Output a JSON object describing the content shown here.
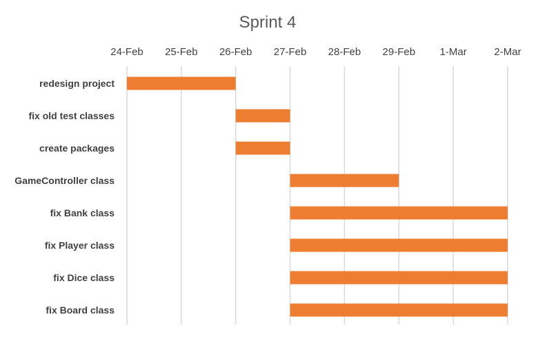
{
  "chart_data": {
    "type": "bar",
    "orientation": "horizontal",
    "chart_style": "gantt",
    "title": "Sprint 4",
    "x_axis": {
      "position": "top",
      "ticks": [
        "24-Feb",
        "25-Feb",
        "26-Feb",
        "27-Feb",
        "28-Feb",
        "29-Feb",
        "1-Mar",
        "2-Mar"
      ],
      "range": [
        "24-Feb",
        "2-Mar"
      ],
      "gridlines": true
    },
    "tasks": [
      {
        "name": "redesign project",
        "start": "24-Feb",
        "end": "26-Feb"
      },
      {
        "name": "fix old test classes",
        "start": "26-Feb",
        "end": "27-Feb"
      },
      {
        "name": "create packages",
        "start": "26-Feb",
        "end": "27-Feb"
      },
      {
        "name": "GameController class",
        "start": "27-Feb",
        "end": "29-Feb"
      },
      {
        "name": "fix Bank class",
        "start": "27-Feb",
        "end": "2-Mar"
      },
      {
        "name": "fix Player class",
        "start": "27-Feb",
        "end": "2-Mar"
      },
      {
        "name": "fix Dice class",
        "start": "27-Feb",
        "end": "2-Mar"
      },
      {
        "name": "fix Board class",
        "start": "27-Feb",
        "end": "2-Mar"
      }
    ],
    "legend": "none",
    "colors": {
      "bar": "#ED7D31",
      "gridline": "#D9D9D9",
      "title": "#595959",
      "label": "#404040"
    }
  }
}
